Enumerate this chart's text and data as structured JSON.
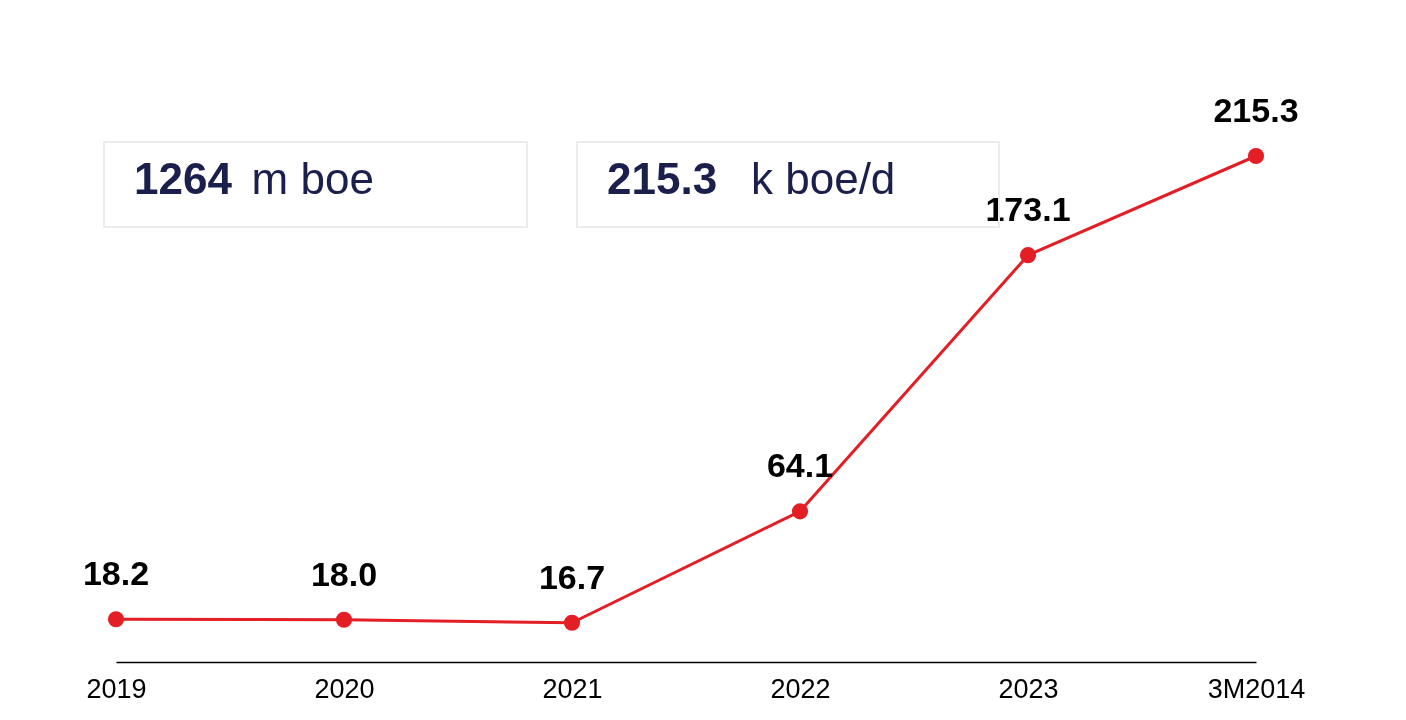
{
  "chart_data": {
    "type": "line",
    "categories": [
      "2019",
      "2020",
      "2021",
      "2022",
      "2023",
      "3M2014"
    ],
    "series": [
      {
        "color": "#e31e24",
        "values": [
          18.2,
          18.0,
          16.7,
          64.1,
          173.1,
          215.3
        ],
        "value_labels": [
          "18.2",
          "18.0",
          "16.7",
          "64.1",
          "173.1",
          "215.3"
        ]
      }
    ],
    "tick_labels": "x",
    "marker": "circle",
    "line_style": "solid",
    "annotations": [
      "1264 m boe",
      "215.3 k boe/d"
    ]
  }
}
